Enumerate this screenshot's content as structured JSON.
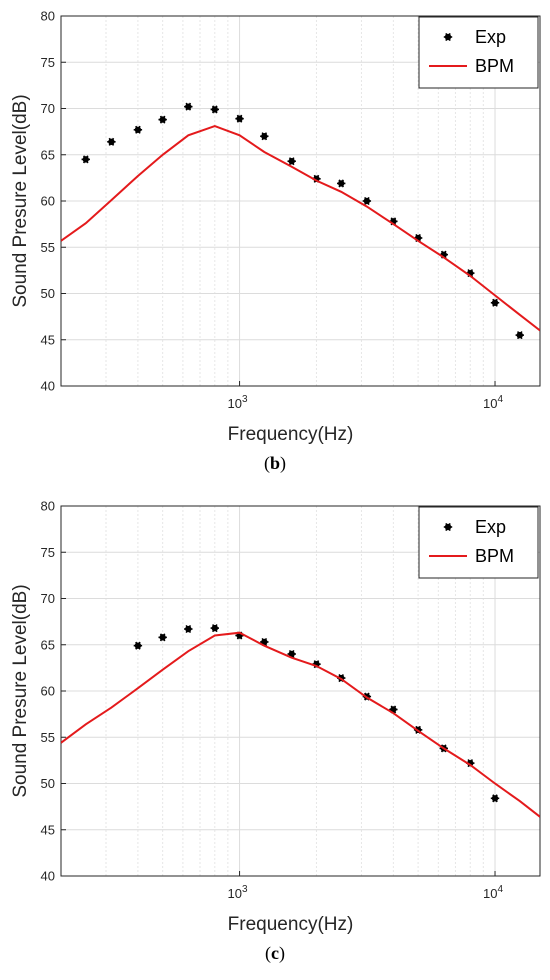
{
  "chart_data": [
    {
      "type": "scatter",
      "caption": "b",
      "xlabel": "Frequency(Hz)",
      "ylabel": "Sound Presure Level(dB)",
      "xscale": "log",
      "xlim": [
        200,
        15000
      ],
      "ylim": [
        40,
        80
      ],
      "yticks": [
        40,
        45,
        50,
        55,
        60,
        65,
        70,
        75,
        80
      ],
      "xticks": [
        {
          "base": "10",
          "exp": "3",
          "value": 1000
        },
        {
          "base": "10",
          "exp": "4",
          "value": 10000
        }
      ],
      "grid": true,
      "legend_position": "top-right",
      "series": [
        {
          "name": "Exp",
          "kind": "scatter",
          "color": "#000000",
          "x": [
            250,
            315,
            400,
            500,
            630,
            800,
            1000,
            1250,
            1600,
            2000,
            2500,
            3150,
            4000,
            5000,
            6300,
            8000,
            10000,
            12500
          ],
          "y": [
            64.5,
            66.4,
            67.7,
            68.8,
            70.2,
            69.9,
            68.9,
            67.0,
            64.3,
            62.4,
            61.9,
            60.0,
            57.8,
            56.0,
            54.2,
            52.2,
            49.0,
            45.5
          ]
        },
        {
          "name": "BPM",
          "kind": "line",
          "color": "#e41a1c",
          "x": [
            200,
            250,
            315,
            400,
            500,
            630,
            800,
            1000,
            1250,
            1600,
            2000,
            2500,
            3150,
            4000,
            5000,
            6300,
            8000,
            10000,
            12500,
            15000
          ],
          "y": [
            55.7,
            57.6,
            60.1,
            62.7,
            65.0,
            67.1,
            68.1,
            67.1,
            65.3,
            63.7,
            62.2,
            61.0,
            59.4,
            57.5,
            55.7,
            53.9,
            51.9,
            49.8,
            47.7,
            46.0
          ]
        }
      ]
    },
    {
      "type": "scatter",
      "caption": "c",
      "xlabel": "Frequency(Hz)",
      "ylabel": "Sound Presure Level(dB)",
      "xscale": "log",
      "xlim": [
        200,
        15000
      ],
      "ylim": [
        40,
        80
      ],
      "yticks": [
        40,
        45,
        50,
        55,
        60,
        65,
        70,
        75,
        80
      ],
      "xticks": [
        {
          "base": "10",
          "exp": "3",
          "value": 1000
        },
        {
          "base": "10",
          "exp": "4",
          "value": 10000
        }
      ],
      "grid": true,
      "legend_position": "top-right",
      "series": [
        {
          "name": "Exp",
          "kind": "scatter",
          "color": "#000000",
          "x": [
            400,
            500,
            630,
            800,
            1000,
            1250,
            1600,
            2000,
            2500,
            3150,
            4000,
            5000,
            6300,
            8000,
            10000
          ],
          "y": [
            64.9,
            65.8,
            66.7,
            66.8,
            66.0,
            65.3,
            64.0,
            62.9,
            61.4,
            59.4,
            58.0,
            55.8,
            53.8,
            52.2,
            48.4
          ]
        },
        {
          "name": "BPM",
          "kind": "line",
          "color": "#e41a1c",
          "x": [
            200,
            250,
            315,
            400,
            500,
            630,
            800,
            1000,
            1250,
            1600,
            2000,
            2500,
            3150,
            4000,
            5000,
            6300,
            8000,
            10000,
            12500,
            15000
          ],
          "y": [
            54.4,
            56.4,
            58.2,
            60.3,
            62.3,
            64.3,
            66.0,
            66.3,
            64.9,
            63.6,
            62.7,
            61.3,
            59.3,
            57.6,
            55.7,
            53.8,
            52.0,
            50.0,
            48.1,
            46.4
          ]
        }
      ]
    }
  ]
}
